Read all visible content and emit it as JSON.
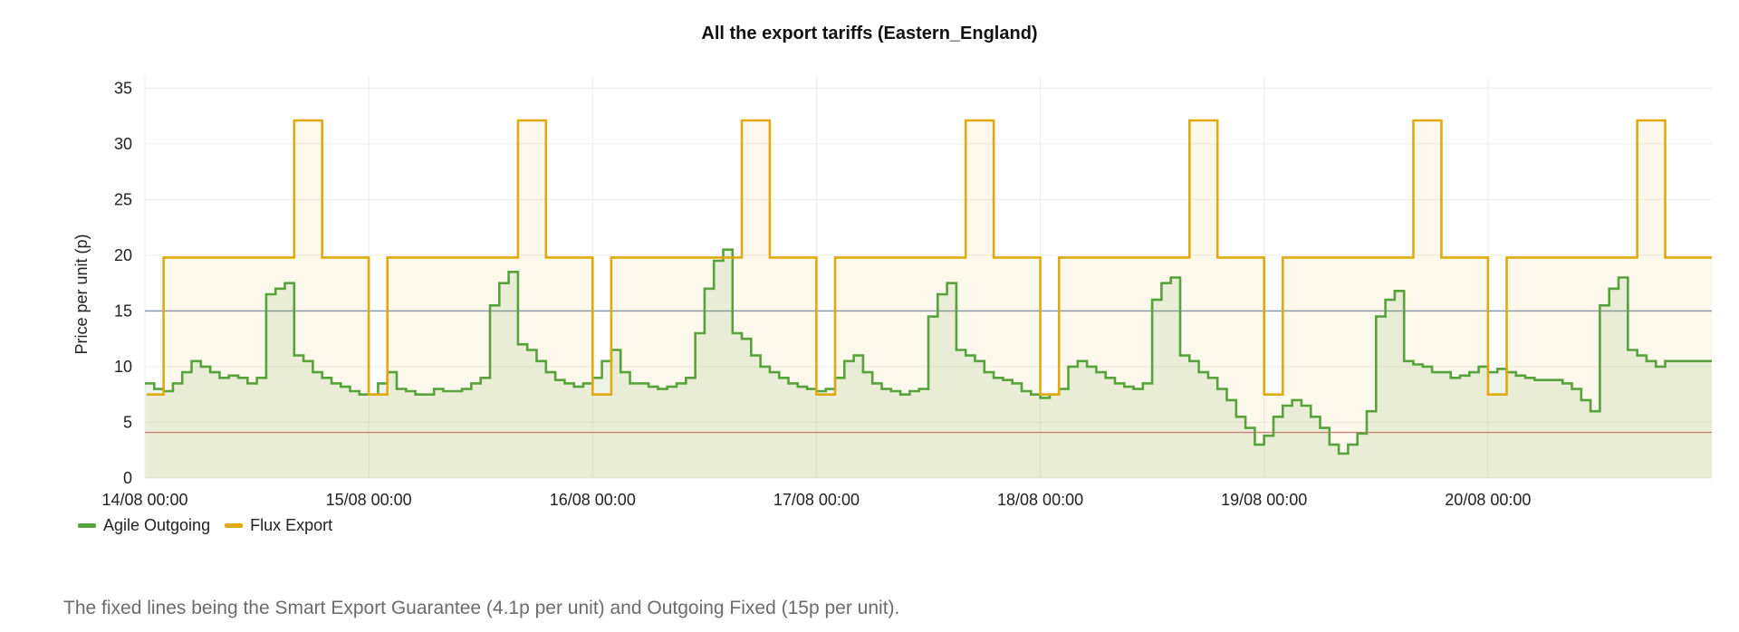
{
  "chart_data": {
    "type": "line",
    "title": "All the export tariffs (Eastern_England)",
    "xlabel": "",
    "ylabel": "Price per unit (p)",
    "ylim": [
      0,
      36
    ],
    "y_ticks": [
      "0",
      "5",
      "10",
      "15",
      "20",
      "25",
      "30",
      "35"
    ],
    "x_ticks": [
      "14/08 00:00",
      "15/08 00:00",
      "16/08 00:00",
      "17/08 00:00",
      "18/08 00:00",
      "19/08 00:00",
      "20/08 00:00"
    ],
    "x_range_hours": [
      0,
      168
    ],
    "grid": true,
    "legend_position": "bottom-left",
    "reference_lines": [
      {
        "value": 15,
        "color": "#7f93ad"
      },
      {
        "value": 4.1,
        "color": "#d47a7a"
      }
    ],
    "series": [
      {
        "name": "Agile Outgoing",
        "color": "#58a23c",
        "step": true,
        "daily_hours": [
          0,
          1,
          2,
          3,
          4,
          5,
          6,
          7,
          8,
          9,
          10,
          11,
          12,
          13,
          14,
          15,
          16,
          17,
          18,
          19,
          20,
          21,
          22,
          23
        ],
        "days": [
          [
            8.5,
            8.0,
            7.8,
            8.5,
            9.5,
            10.5,
            10.0,
            9.5,
            9.0,
            9.2,
            9.0,
            8.5,
            9.0,
            16.5,
            17.0,
            17.5,
            11.0,
            10.5,
            9.5,
            9.0,
            8.5,
            8.2,
            7.8,
            7.5
          ],
          [
            7.5,
            8.5,
            9.5,
            8.0,
            7.8,
            7.5,
            7.5,
            8.0,
            7.8,
            7.8,
            8.0,
            8.5,
            9.0,
            15.5,
            17.5,
            18.5,
            12.0,
            11.5,
            10.5,
            9.5,
            8.8,
            8.5,
            8.2,
            8.5
          ],
          [
            9.0,
            10.5,
            11.5,
            9.5,
            8.5,
            8.5,
            8.2,
            8.0,
            8.2,
            8.5,
            9.0,
            13.0,
            17.0,
            19.5,
            20.5,
            13.0,
            12.5,
            11.0,
            10.0,
            9.5,
            9.0,
            8.5,
            8.2,
            8.0
          ],
          [
            7.8,
            8.0,
            9.0,
            10.5,
            11.0,
            9.5,
            8.5,
            8.0,
            7.8,
            7.5,
            7.8,
            8.0,
            14.5,
            16.5,
            17.5,
            11.5,
            11.0,
            10.5,
            9.5,
            9.0,
            8.8,
            8.5,
            7.8,
            7.5
          ],
          [
            7.2,
            7.5,
            8.0,
            10.0,
            10.5,
            10.0,
            9.5,
            9.0,
            8.5,
            8.2,
            8.0,
            8.5,
            16.0,
            17.5,
            18.0,
            11.0,
            10.5,
            9.5,
            9.0,
            8.0,
            7.0,
            5.5,
            4.5,
            3.0
          ],
          [
            3.8,
            5.5,
            6.5,
            7.0,
            6.5,
            5.5,
            4.5,
            3.0,
            2.2,
            3.0,
            4.0,
            6.0,
            14.5,
            16.0,
            16.8,
            10.5,
            10.2,
            10.0,
            9.5,
            9.5,
            9.0,
            9.2,
            9.5,
            10.0
          ],
          [
            9.5,
            9.8,
            9.5,
            9.2,
            9.0,
            8.8,
            8.8,
            8.8,
            8.5,
            8.0,
            7.0,
            6.0,
            15.5,
            17.0,
            18.0,
            11.5,
            11.0,
            10.5,
            10.0,
            10.5,
            10.5,
            10.5,
            10.5,
            10.5
          ]
        ]
      },
      {
        "name": "Flux Export",
        "color": "#e0aa0d",
        "step": true,
        "daily_rates": [
          {
            "from_hour": 0,
            "to_hour": 2,
            "value": 7.5
          },
          {
            "from_hour": 2,
            "to_hour": 16,
            "value": 19.8
          },
          {
            "from_hour": 16,
            "to_hour": 19,
            "value": 32.1
          },
          {
            "from_hour": 19,
            "to_hour": 24,
            "value": 19.8
          }
        ]
      }
    ]
  },
  "caption": "The fixed lines being the Smart Export Guarantee (4.1p per unit) and Outgoing Fixed (15p per unit)."
}
